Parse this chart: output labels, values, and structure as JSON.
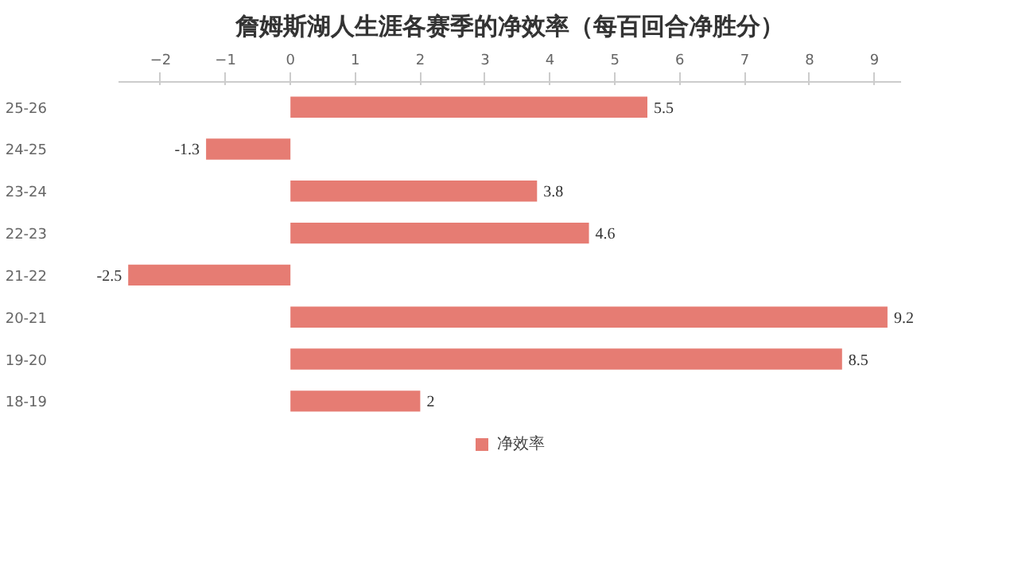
{
  "chart_data": {
    "type": "bar",
    "orientation": "horizontal",
    "title": "詹姆斯湖人生涯各赛季的净效率（每百回合净胜分）",
    "categories": [
      "25-26",
      "24-25",
      "23-24",
      "22-23",
      "21-22",
      "20-21",
      "19-20",
      "18-19"
    ],
    "series": [
      {
        "name": "净效率",
        "color": "#e67c73",
        "values": [
          5.5,
          -1.3,
          3.8,
          4.6,
          -2.5,
          9.2,
          8.5,
          2
        ]
      }
    ],
    "xlim": [
      -2.64,
      9.4
    ],
    "xticks": [
      -2,
      -1,
      0,
      1,
      2,
      3,
      4,
      5,
      6,
      7,
      8,
      9
    ],
    "data_labels": true,
    "legend": "bottom",
    "grid": false
  }
}
